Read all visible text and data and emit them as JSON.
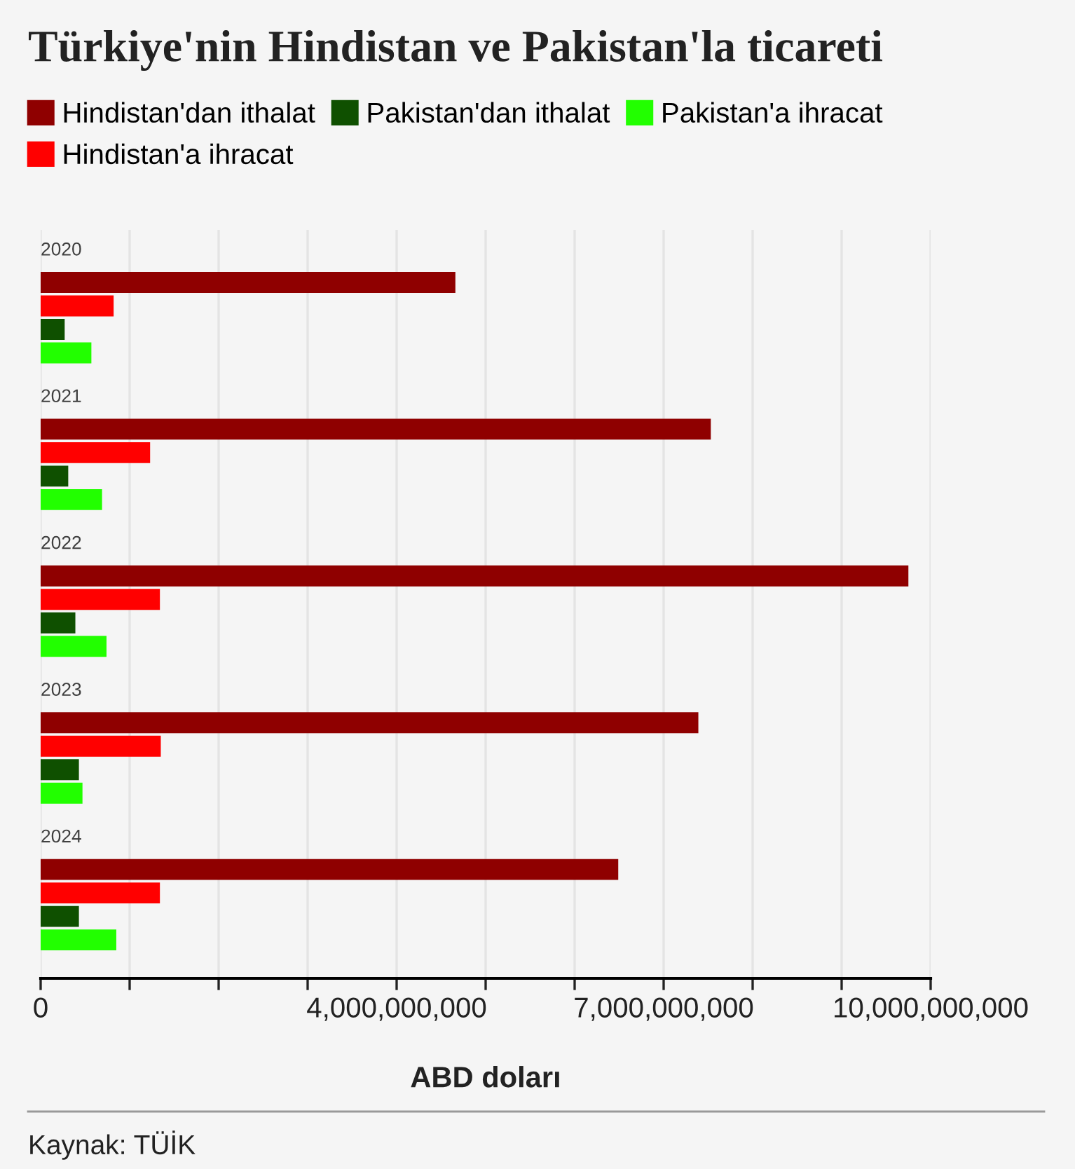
{
  "chart_data": {
    "type": "bar",
    "orientation": "horizontal",
    "title": "Türkiye'nin Hindistan ve Pakistan'la ticareti",
    "categories": [
      "2020",
      "2021",
      "2022",
      "2023",
      "2024"
    ],
    "series": [
      {
        "name": "Hindistan'dan ithalat",
        "color": "#8f0000",
        "values": [
          4660000000,
          7530000000,
          9750000000,
          7390000000,
          6490000000
        ]
      },
      {
        "name": "Hindistan'a ihracat",
        "color": "#ff0000",
        "values": [
          820000000,
          1230000000,
          1340000000,
          1350000000,
          1340000000
        ]
      },
      {
        "name": "Pakistan'dan ithalat",
        "color": "#0f5000",
        "values": [
          270000000,
          310000000,
          390000000,
          430000000,
          430000000
        ]
      },
      {
        "name": "Pakistan'a ihracat",
        "color": "#22ff00",
        "values": [
          570000000,
          690000000,
          740000000,
          470000000,
          850000000
        ]
      }
    ],
    "xlim": [
      0,
      10000000000
    ],
    "xticks": [
      0,
      {
        "value": 1000000000,
        "label": null
      },
      {
        "value": 2000000000,
        "label": null
      },
      {
        "value": 3000000000,
        "label": null
      },
      {
        "value": 4000000000,
        "label": "4,000,000,000"
      },
      {
        "value": 5000000000,
        "label": null
      },
      {
        "value": 6000000000,
        "label": null
      },
      {
        "value": 7000000000,
        "label": "7,000,000,000"
      },
      {
        "value": 8000000000,
        "label": null
      },
      {
        "value": 9000000000,
        "label": null
      },
      {
        "value": 10000000000,
        "label": "10,000,000,000"
      }
    ],
    "xlabel": "ABD doları",
    "grid": "x",
    "legend": "top",
    "annotations": [
      "Kaynak: TÜİK"
    ]
  }
}
